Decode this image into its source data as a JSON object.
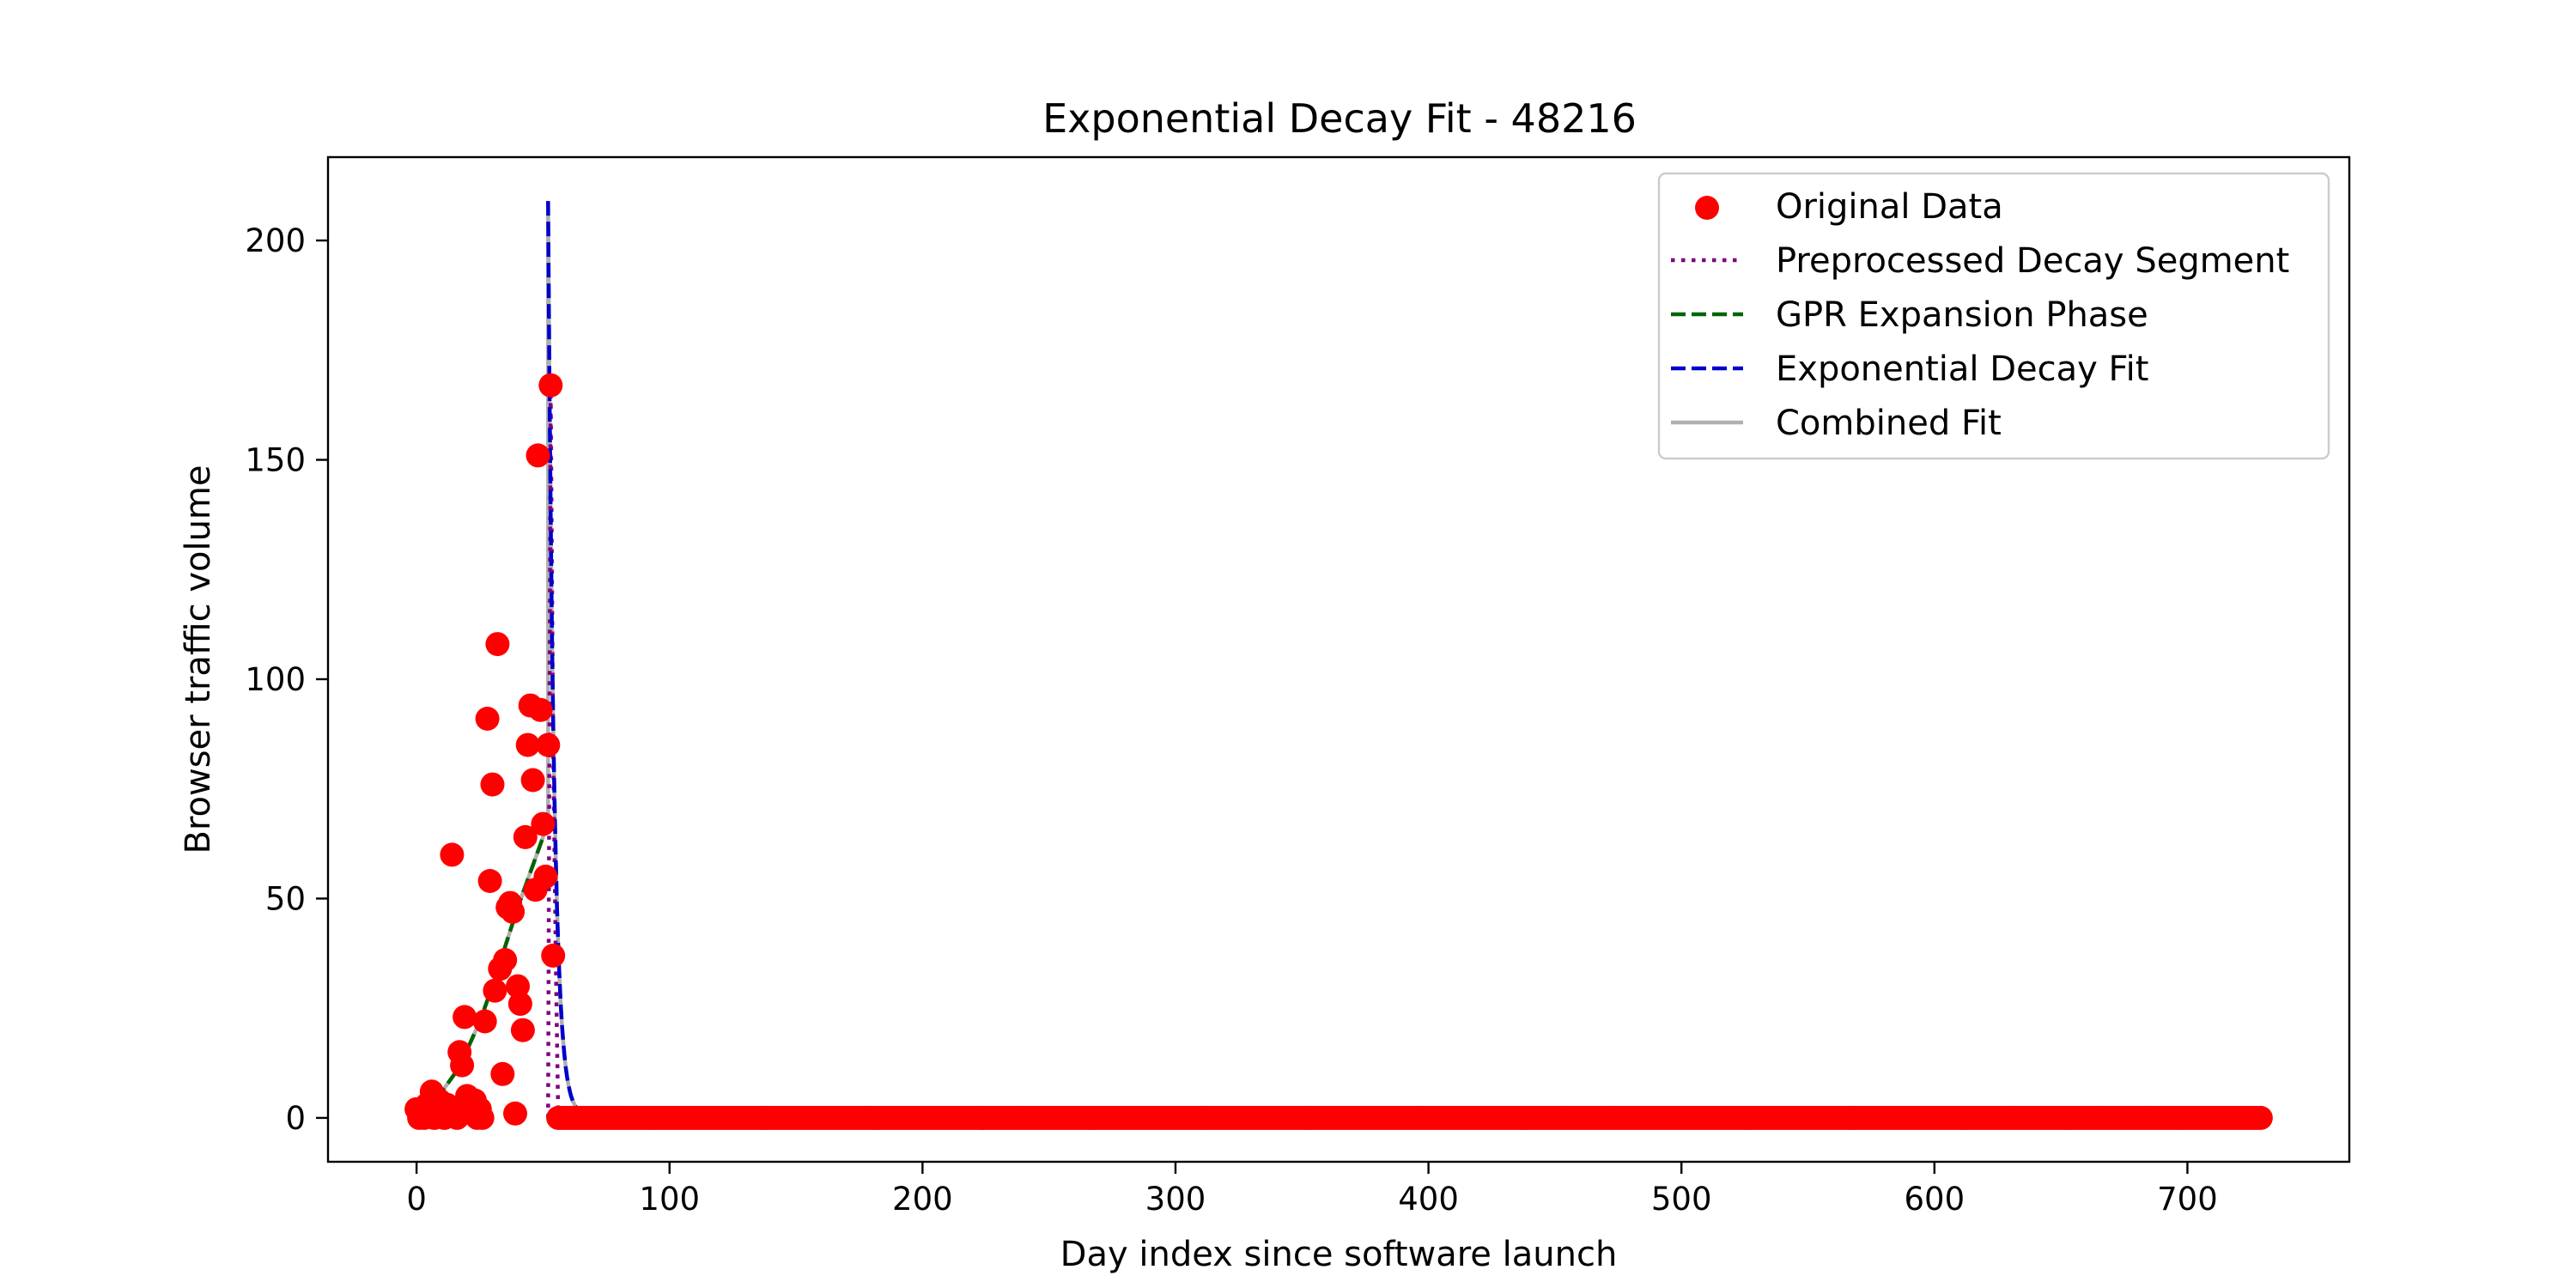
{
  "chart_data": {
    "type": "scatter",
    "title": "Exponential Decay Fit - 48216",
    "xlabel": "Day index since software launch",
    "ylabel": "Browser traffic volume",
    "xlim": [
      -35,
      764
    ],
    "ylim": [
      -10,
      219
    ],
    "xticks": [
      0,
      100,
      200,
      300,
      400,
      500,
      600,
      700
    ],
    "yticks": [
      0,
      50,
      100,
      150,
      200
    ],
    "grid": false,
    "legend_position": "top-right",
    "peak_day": 52,
    "series": [
      {
        "name": "Original Data",
        "kind": "scatter",
        "color": "#ff0000",
        "points": [
          [
            0,
            2
          ],
          [
            1,
            0
          ],
          [
            2,
            1
          ],
          [
            3,
            0
          ],
          [
            4,
            3
          ],
          [
            5,
            1
          ],
          [
            6,
            6
          ],
          [
            7,
            0
          ],
          [
            8,
            2
          ],
          [
            9,
            4
          ],
          [
            10,
            1
          ],
          [
            11,
            0
          ],
          [
            12,
            3
          ],
          [
            13,
            2
          ],
          [
            14,
            60
          ],
          [
            15,
            1
          ],
          [
            16,
            0
          ],
          [
            17,
            15
          ],
          [
            18,
            12
          ],
          [
            19,
            23
          ],
          [
            20,
            5
          ],
          [
            21,
            3
          ],
          [
            22,
            1
          ],
          [
            23,
            4
          ],
          [
            24,
            0
          ],
          [
            25,
            2
          ],
          [
            26,
            0
          ],
          [
            27,
            22
          ],
          [
            28,
            91
          ],
          [
            29,
            54
          ],
          [
            30,
            76
          ],
          [
            31,
            29
          ],
          [
            32,
            108
          ],
          [
            33,
            34
          ],
          [
            34,
            10
          ],
          [
            35,
            36
          ],
          [
            36,
            48
          ],
          [
            37,
            49
          ],
          [
            38,
            47
          ],
          [
            39,
            1
          ],
          [
            40,
            30
          ],
          [
            41,
            26
          ],
          [
            42,
            20
          ],
          [
            43,
            64
          ],
          [
            44,
            85
          ],
          [
            45,
            94
          ],
          [
            46,
            77
          ],
          [
            47,
            52
          ],
          [
            48,
            151
          ],
          [
            49,
            93
          ],
          [
            50,
            67
          ],
          [
            51,
            55
          ],
          [
            52,
            85
          ],
          [
            53,
            167
          ],
          [
            54,
            37
          ]
        ],
        "tail_from": 56,
        "tail_to": 729,
        "tail_value": 0
      },
      {
        "name": "Preprocessed Decay Segment",
        "kind": "line",
        "style": "dotted",
        "color": "#800080",
        "points": [
          [
            52,
            0
          ],
          [
            53,
            167
          ],
          [
            54,
            85
          ],
          [
            55,
            37
          ],
          [
            56,
            0
          ],
          [
            729,
            0
          ]
        ]
      },
      {
        "name": "GPR Expansion Phase",
        "kind": "line",
        "style": "dashed",
        "color": "#006400",
        "points": [
          [
            0,
            2
          ],
          [
            5,
            3.5
          ],
          [
            10,
            6
          ],
          [
            15,
            10
          ],
          [
            20,
            15.5
          ],
          [
            25,
            22
          ],
          [
            30,
            30
          ],
          [
            35,
            39
          ],
          [
            40,
            48
          ],
          [
            45,
            56
          ],
          [
            50,
            64
          ],
          [
            52,
            67
          ]
        ]
      },
      {
        "name": "Exponential Decay Fit",
        "kind": "line",
        "style": "dashed",
        "color": "#0000cd",
        "peak": 209,
        "decay_rate": 0.42,
        "floor": 0.4
      },
      {
        "name": "Combined Fit",
        "kind": "line",
        "style": "solid",
        "color": "#b0b0b0"
      }
    ]
  }
}
